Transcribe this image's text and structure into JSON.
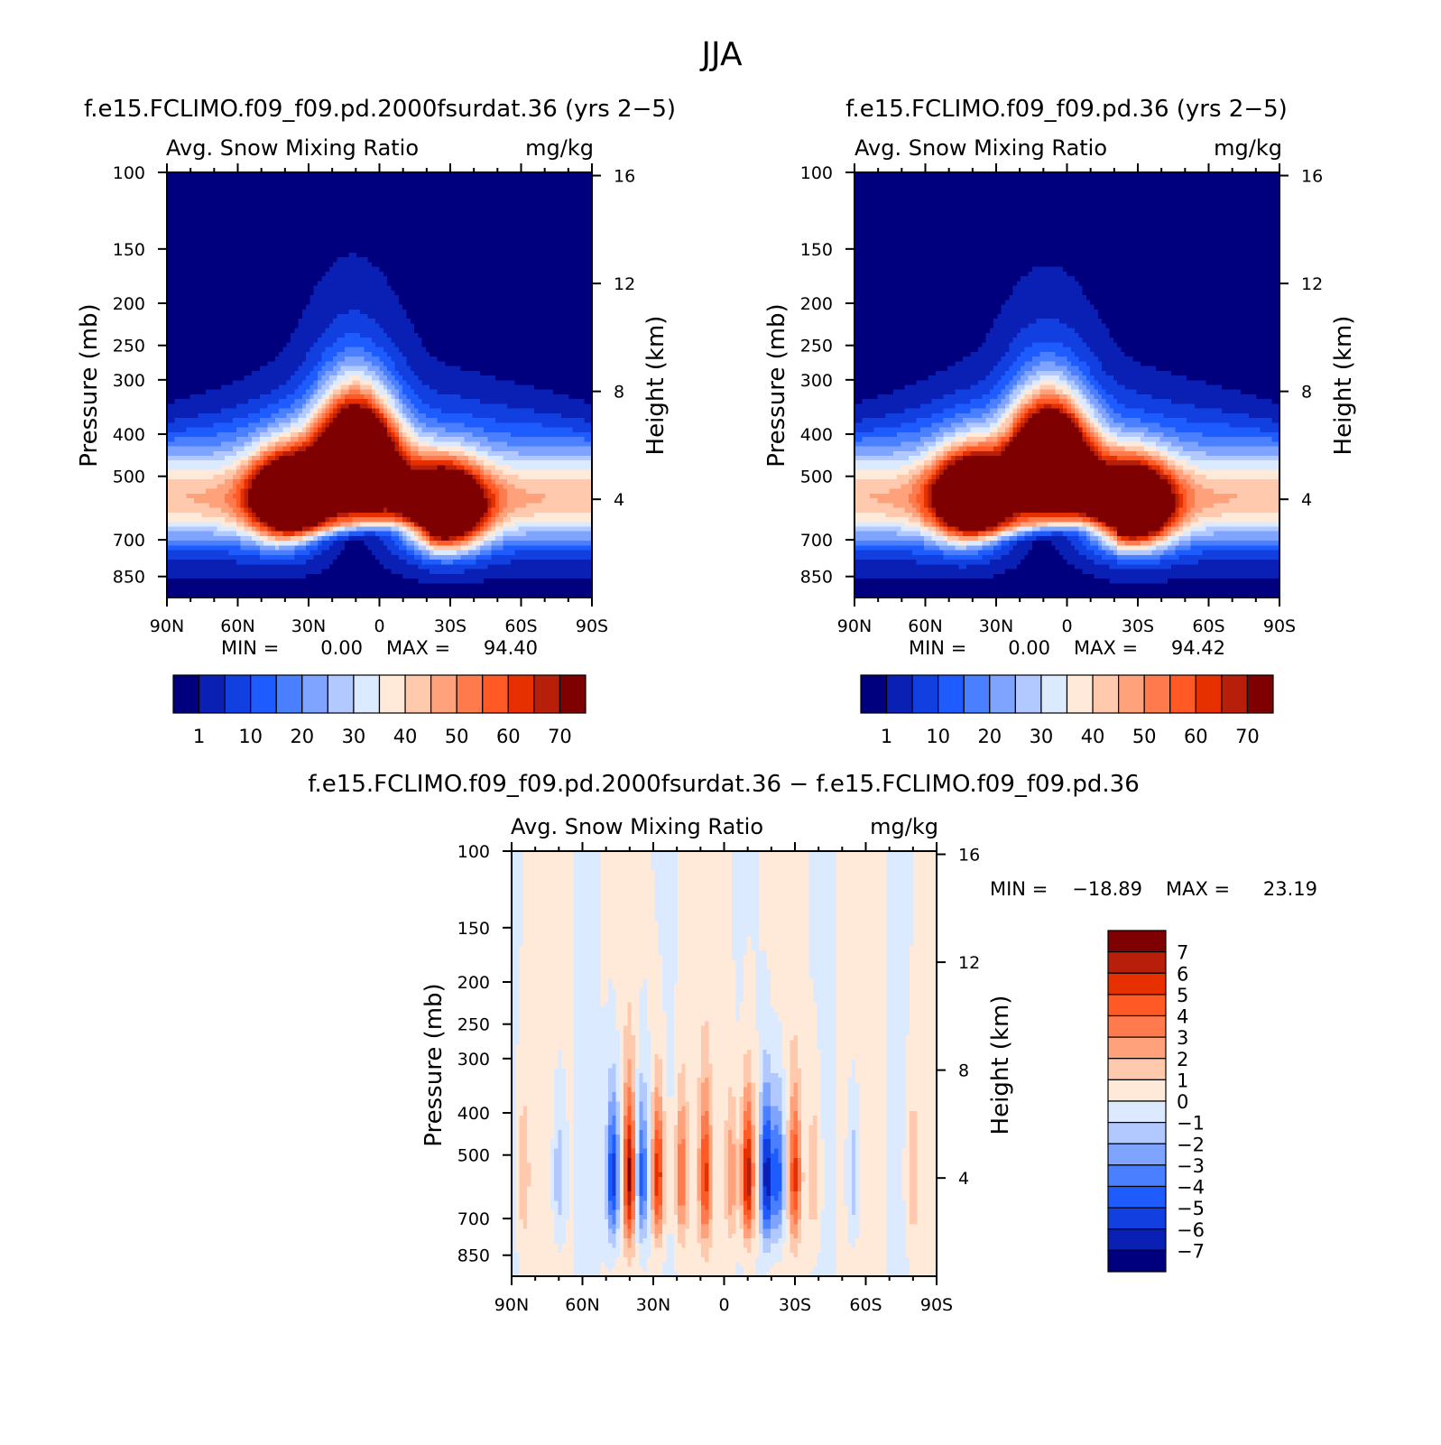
{
  "page": {
    "title": "JJA"
  },
  "chart_data": [
    {
      "type": "heatmap",
      "id": "p1",
      "title": "f.e15.FCLIMO.f09_f09.pd.2000fsurdat.36 (yrs 2−5)",
      "left_string": "Avg. Snow Mixing Ratio",
      "right_string": "mg/kg",
      "xlabel": "",
      "ylabel": "Pressure (mb)",
      "y2label": "Height (km)",
      "xticks": [
        "90N",
        "60N",
        "30N",
        "0",
        "30S",
        "60S",
        "90S"
      ],
      "xlim": [
        90,
        -90
      ],
      "yticks": [
        100,
        150,
        200,
        250,
        300,
        400,
        500,
        700,
        850
      ],
      "ylim": [
        100,
        950
      ],
      "y2ticks": [
        16,
        12,
        8,
        4
      ],
      "min_label": "MIN =",
      "min_value": "0.00",
      "max_label": "MAX =",
      "max_value": "94.40",
      "colorbar": {
        "orientation": "horizontal",
        "labels": [
          "1",
          "10",
          "20",
          "30",
          "40",
          "50",
          "60",
          "70"
        ],
        "levels": [
          1,
          5,
          10,
          15,
          20,
          25,
          30,
          35,
          40,
          45,
          50,
          55,
          60,
          65,
          70
        ],
        "colors": [
          "#00007f",
          "#0a1fb4",
          "#1240e0",
          "#1f5cff",
          "#4a80ff",
          "#7fa4ff",
          "#b1c9ff",
          "#dbeaff",
          "#ffe9d9",
          "#ffc9ad",
          "#ffa27c",
          "#ff7a4c",
          "#ff5a26",
          "#e63000",
          "#b81f0a",
          "#7f0000"
        ]
      },
      "field": {
        "blobs": [
          {
            "lat": 38,
            "p": 560,
            "amp": 85
          },
          {
            "lat": 12,
            "p": 430,
            "amp": 82
          },
          {
            "lat": -28,
            "p": 600,
            "amp": 86
          },
          {
            "lat": 2,
            "p": 470,
            "amp": 40
          }
        ]
      }
    },
    {
      "type": "heatmap",
      "id": "p2",
      "title": "f.e15.FCLIMO.f09_f09.pd.36 (yrs 2−5)",
      "left_string": "Avg. Snow Mixing Ratio",
      "right_string": "mg/kg",
      "xlabel": "",
      "ylabel": "Pressure (mb)",
      "y2label": "Height (km)",
      "xticks": [
        "90N",
        "60N",
        "30N",
        "0",
        "30S",
        "60S",
        "90S"
      ],
      "xlim": [
        90,
        -90
      ],
      "yticks": [
        100,
        150,
        200,
        250,
        300,
        400,
        500,
        700,
        850
      ],
      "ylim": [
        100,
        950
      ],
      "y2ticks": [
        16,
        12,
        8,
        4
      ],
      "min_label": "MIN =",
      "min_value": "0.00",
      "max_label": "MAX =",
      "max_value": "94.42",
      "colorbar": {
        "orientation": "horizontal",
        "labels": [
          "1",
          "10",
          "20",
          "30",
          "40",
          "50",
          "60",
          "70"
        ],
        "levels": [
          1,
          5,
          10,
          15,
          20,
          25,
          30,
          35,
          40,
          45,
          50,
          55,
          60,
          65,
          70
        ],
        "colors": [
          "#00007f",
          "#0a1fb4",
          "#1240e0",
          "#1f5cff",
          "#4a80ff",
          "#7fa4ff",
          "#b1c9ff",
          "#dbeaff",
          "#ffe9d9",
          "#ffc9ad",
          "#ffa27c",
          "#ff7a4c",
          "#ff5a26",
          "#e63000",
          "#b81f0a",
          "#7f0000"
        ]
      },
      "field": {
        "blobs": [
          {
            "lat": 40,
            "p": 560,
            "amp": 86
          },
          {
            "lat": 10,
            "p": 440,
            "amp": 80
          },
          {
            "lat": -28,
            "p": 590,
            "amp": 87
          },
          {
            "lat": 0,
            "p": 460,
            "amp": 38
          }
        ]
      }
    },
    {
      "type": "heatmap",
      "id": "p3",
      "title": "f.e15.FCLIMO.f09_f09.pd.2000fsurdat.36 − f.e15.FCLIMO.f09_f09.pd.36",
      "left_string": "Avg. Snow Mixing Ratio",
      "right_string": "mg/kg",
      "xlabel": "",
      "ylabel": "Pressure (mb)",
      "y2label": "Height (km)",
      "xticks": [
        "90N",
        "60N",
        "30N",
        "0",
        "30S",
        "60S",
        "90S"
      ],
      "xlim": [
        90,
        -90
      ],
      "yticks": [
        100,
        150,
        200,
        250,
        300,
        400,
        500,
        700,
        850
      ],
      "ylim": [
        100,
        950
      ],
      "y2ticks": [
        16,
        12,
        8,
        4
      ],
      "min_label": "MIN =",
      "min_value": "−18.89",
      "max_label": "MAX =",
      "max_value": "23.19",
      "colorbar": {
        "orientation": "vertical",
        "labels": [
          "7",
          "6",
          "5",
          "4",
          "3",
          "2",
          "1",
          "0",
          "−1",
          "−2",
          "−3",
          "−4",
          "−5",
          "−6",
          "−7"
        ],
        "levels": [
          -7,
          -6,
          -5,
          -4,
          -3,
          -2,
          -1,
          0,
          1,
          2,
          3,
          4,
          5,
          6,
          7
        ],
        "colors": [
          "#00007f",
          "#0a1fb4",
          "#1240e0",
          "#1f5cff",
          "#4a80ff",
          "#7fa4ff",
          "#b1c9ff",
          "#dbeaff",
          "#ffe9d9",
          "#ffc9ad",
          "#ffa27c",
          "#ff7a4c",
          "#ff5a26",
          "#e63000",
          "#b81f0a",
          "#7f0000"
        ]
      },
      "field": {
        "stripes": [
          {
            "lat": 47,
            "amp": -6
          },
          {
            "lat": 40,
            "amp": 7
          },
          {
            "lat": 35,
            "amp": -5
          },
          {
            "lat": 28,
            "amp": 6
          },
          {
            "lat": 18,
            "amp": 4
          },
          {
            "lat": 8,
            "amp": 5
          },
          {
            "lat": -3,
            "amp": 3
          },
          {
            "lat": -10,
            "amp": 7
          },
          {
            "lat": -18,
            "amp": -7
          },
          {
            "lat": -23,
            "amp": -5
          },
          {
            "lat": -30,
            "amp": 5
          },
          {
            "lat": -38,
            "amp": 2
          },
          {
            "lat": -55,
            "amp": -2
          },
          {
            "lat": -80,
            "amp": 2
          },
          {
            "lat": 85,
            "amp": 2
          },
          {
            "lat": 70,
            "amp": -2
          }
        ]
      }
    }
  ]
}
